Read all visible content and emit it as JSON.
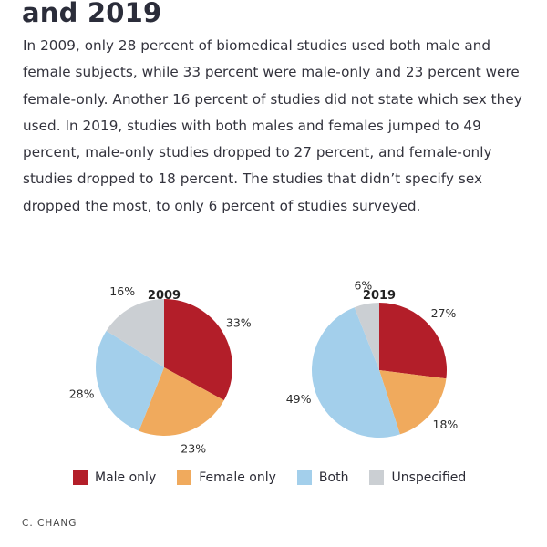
{
  "article": {
    "heading": "and 2019",
    "paragraph_lines": [
      "In 2009, only 28 percent of biomedical studies used both male and",
      "female subjects, while 33 percent were male-only and 23 percent were",
      "female-only. Another 16 percent of studies did not state which sex they",
      "used. In 2019, studies with both males and females jumped to 49",
      "percent, male-only studies dropped to 27 percent, and female-only",
      "studies dropped to 18 percent. The studies that didn’t specify sex",
      "dropped the most, to only 6 percent of studies surveyed."
    ],
    "credit": "C. CHANG"
  },
  "chart_data": [
    {
      "type": "pie",
      "title": "2009",
      "categories": [
        "Male only",
        "Female only",
        "Both",
        "Unspecified"
      ],
      "values": [
        33,
        23,
        28,
        16
      ],
      "labels": [
        "33%",
        "23%",
        "28%",
        "16%"
      ],
      "start": "12 o'clock",
      "direction": "clockwise"
    },
    {
      "type": "pie",
      "title": "2019",
      "categories": [
        "Male only",
        "Female only",
        "Both",
        "Unspecified"
      ],
      "values": [
        27,
        18,
        49,
        6
      ],
      "labels": [
        "27%",
        "18%",
        "49%",
        "6%"
      ],
      "start": "12 o'clock",
      "direction": "clockwise"
    }
  ],
  "legend": {
    "placement": "bottom",
    "items": [
      {
        "label": "Male only",
        "color": "#b31e29"
      },
      {
        "label": "Female only",
        "color": "#f0aa5d"
      },
      {
        "label": "Both",
        "color": "#a3cfeb"
      },
      {
        "label": "Unspecified",
        "color": "#cbcfd3"
      }
    ]
  }
}
